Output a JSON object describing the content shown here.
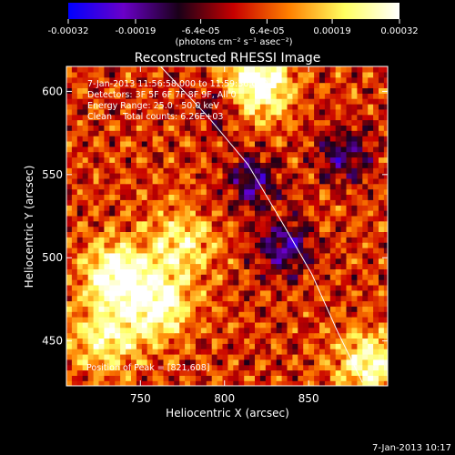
{
  "chart_data": {
    "type": "heatmap",
    "title": "Reconstructed RHESSI Image",
    "xlabel": "Heliocentric X (arcsec)",
    "ylabel": "Heliocentric Y (arcsec)",
    "xlim": [
      706,
      897
    ],
    "ylim": [
      423,
      615
    ],
    "x_ticks": [
      750,
      800,
      850
    ],
    "y_ticks": [
      450,
      500,
      550,
      600
    ],
    "colorbar": {
      "ticks": [
        "-0.00032",
        "-0.00019",
        "-6.4e-05",
        "6.4e-05",
        "0.00019",
        "0.00032"
      ],
      "tick_values": [
        -0.00032,
        -0.00019,
        -6.4e-05,
        6.4e-05,
        0.00019,
        0.00032
      ],
      "range": [
        -0.00032,
        0.00032
      ],
      "unit_label": "(photons cm⁻² s⁻¹ asec⁻²)",
      "colormap": [
        "#0000ff",
        "#6a00c8",
        "#1a0018",
        "#c80000",
        "#ff8000",
        "#ffff60",
        "#ffffff"
      ]
    },
    "info_lines": [
      "7-Jan-2013 11:56:58.000 to 11:59:36.000",
      "Detectors: 3F 5F 6F 7F 8F 9F, All 0",
      "Energy Range: 25.0 - 50.0 keV",
      "Clean    Total counts: 6.26E+03"
    ],
    "peak_label": "Position of Peak = [821,608]",
    "peak": [
      821,
      608
    ],
    "footer_timestamp": "7-Jan-2013 10:17",
    "limb": [
      [
        762,
        615
      ],
      [
        790,
        585
      ],
      [
        814,
        556
      ],
      [
        835,
        520
      ],
      [
        852,
        490
      ],
      [
        867,
        456
      ],
      [
        882,
        425
      ]
    ],
    "bright_regions": [
      {
        "x": 735,
        "y": 488,
        "level": 0.0003
      },
      {
        "x": 760,
        "y": 470,
        "level": 0.00026
      },
      {
        "x": 818,
        "y": 603,
        "level": 0.00032
      },
      {
        "x": 772,
        "y": 508,
        "level": 0.0002
      },
      {
        "x": 885,
        "y": 435,
        "level": 0.00025
      },
      {
        "x": 728,
        "y": 450,
        "level": 0.00022
      }
    ],
    "dark_regions": [
      {
        "x": 815,
        "y": 545,
        "level": -0.0002
      },
      {
        "x": 835,
        "y": 505,
        "level": -0.00022
      },
      {
        "x": 870,
        "y": 560,
        "level": -0.0002
      },
      {
        "x": 795,
        "y": 590,
        "level": -0.00012
      }
    ]
  }
}
